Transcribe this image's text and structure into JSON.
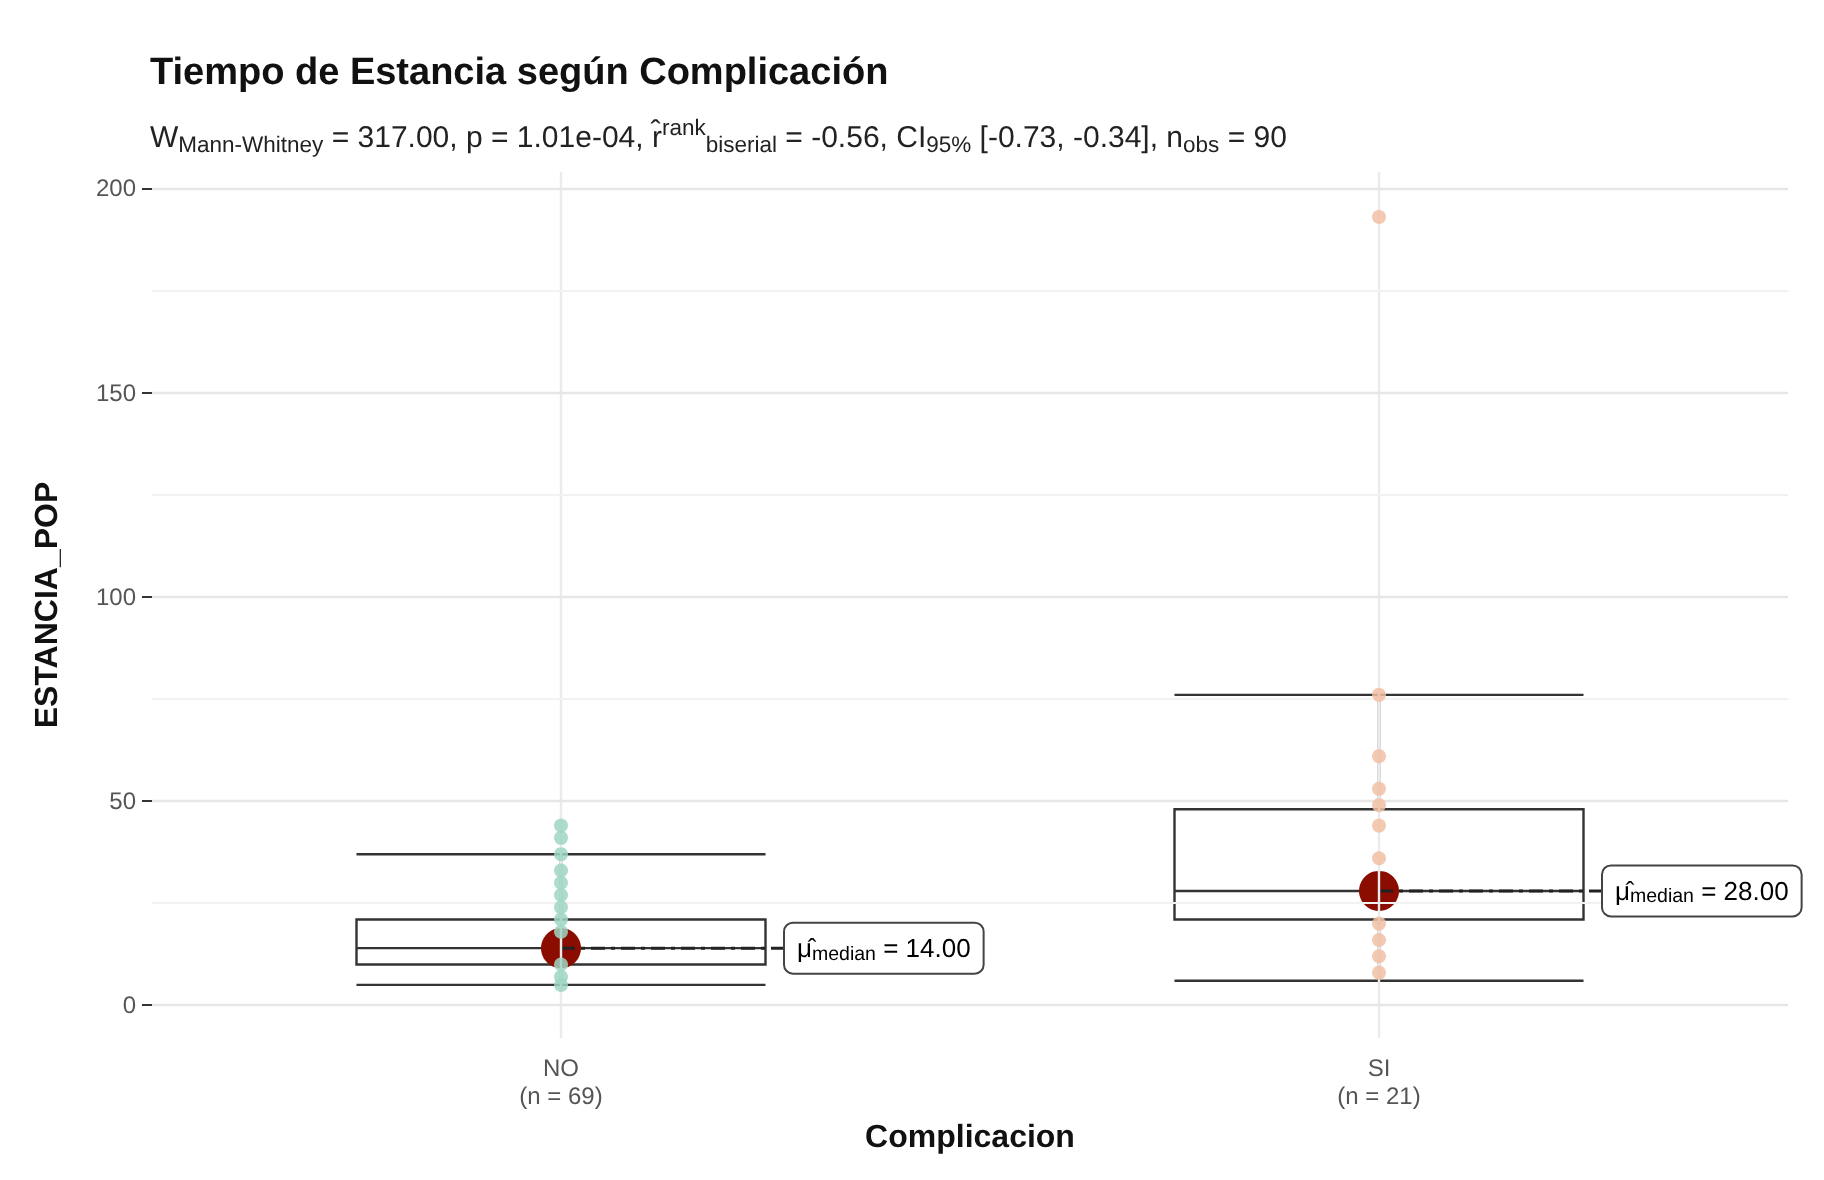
{
  "chart_data": {
    "type": "box",
    "title": "Tiempo de Estancia según Complicación",
    "subtitle": "W$_{Mann-Whitney}$ = 317.00, p = 1.01e-04, r̂$^{rank}$$_{biserial}$ = -0.56, CI$_{95%}$ [-0.73, -0.34], n$_{obs}$ = 90",
    "xlabel": "Complicacion",
    "ylabel": "ESTANCIA_POP",
    "categories": [
      "NO\n(n = 69)",
      "SI\n(n = 21)"
    ],
    "ylim": [
      -8,
      204
    ],
    "yticks": [
      0,
      50,
      100,
      150,
      200
    ],
    "grid": true,
    "series": [
      {
        "color": "#333333",
        "boxes": [
          {
            "low": 5,
            "q1": 10,
            "median": 14,
            "q3": 21,
            "high": 37
          },
          {
            "low": 6,
            "q1": 21,
            "median": 28,
            "q3": 48,
            "high": 76
          }
        ]
      },
      {
        "type": "scatter",
        "color": "#9fd6c3",
        "marker": "circle",
        "x": [
          "NO\n(n = 69)",
          "NO\n(n = 69)",
          "NO\n(n = 69)",
          "NO\n(n = 69)",
          "NO\n(n = 69)",
          "NO\n(n = 69)",
          "NO\n(n = 69)",
          "NO\n(n = 69)",
          "NO\n(n = 69)",
          "NO\n(n = 69)",
          "NO\n(n = 69)",
          "NO\n(n = 69)"
        ],
        "values": [
          44,
          41,
          37,
          33,
          30,
          27,
          24,
          21,
          18,
          10,
          7,
          5
        ]
      },
      {
        "type": "scatter",
        "color": "#f2bfa5",
        "marker": "circle",
        "x": [
          "SI\n(n = 21)",
          "SI\n(n = 21)",
          "SI\n(n = 21)",
          "SI\n(n = 21)",
          "SI\n(n = 21)",
          "SI\n(n = 21)",
          "SI\n(n = 21)",
          "SI\n(n = 21)",
          "SI\n(n = 21)",
          "SI\n(n = 21)",
          "SI\n(n = 21)"
        ],
        "values": [
          193,
          76,
          61,
          53,
          49,
          44,
          36,
          20,
          16,
          12,
          8
        ]
      },
      {
        "type": "scatter",
        "color": "#8b0d00",
        "marker": "circle",
        "x": [
          "NO\n(n = 69)",
          "SI\n(n = 21)"
        ],
        "values": [
          14,
          28
        ]
      }
    ],
    "annotations": [
      {
        "text": "μ̂$_{median}$ = 14.00",
        "x": "NO\n(n = 69)",
        "y": 14
      },
      {
        "text": "μ̂$_{median}$ = 28.00",
        "x": "SI\n(n = 21)",
        "y": 28
      }
    ]
  }
}
